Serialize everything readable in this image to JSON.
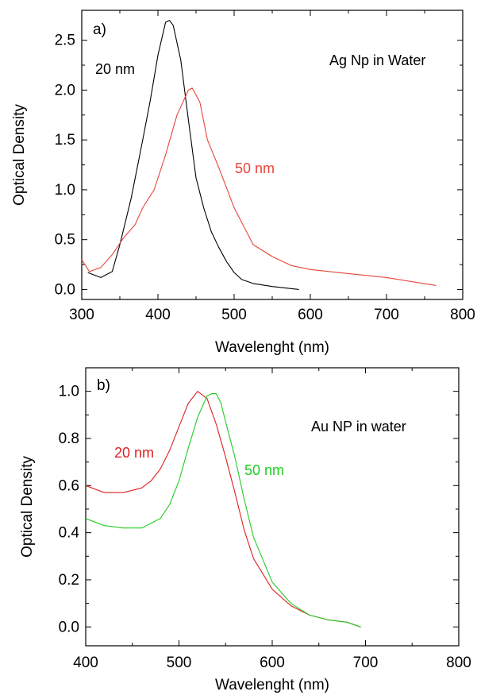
{
  "chart_data": [
    {
      "type": "line",
      "panel_label": "a)",
      "annotation": "Ag Np in Water",
      "xlabel": "Wavelenght (nm)",
      "ylabel": "Optical Density",
      "xlim": [
        300,
        800
      ],
      "ylim": [
        -0.1,
        2.8
      ],
      "xticks": [
        300,
        400,
        500,
        600,
        700,
        800
      ],
      "yticks": [
        0.0,
        0.5,
        1.0,
        1.5,
        2.0,
        2.5
      ],
      "xtick_labels": [
        "300",
        "400",
        "500",
        "600",
        "700",
        "800"
      ],
      "ytick_labels": [
        "0.0",
        "0.5",
        "1.0",
        "1.5",
        "2.0",
        "2.5"
      ],
      "grid": false,
      "series": [
        {
          "name": "20 nm",
          "color": "#000000",
          "x": [
            308,
            325,
            340,
            350,
            365,
            380,
            390,
            400,
            410,
            415,
            420,
            430,
            440,
            450,
            460,
            470,
            480,
            490,
            500,
            510,
            525,
            550,
            585
          ],
          "y": [
            0.17,
            0.12,
            0.18,
            0.45,
            0.92,
            1.5,
            1.9,
            2.35,
            2.68,
            2.7,
            2.65,
            2.3,
            1.7,
            1.12,
            0.82,
            0.58,
            0.42,
            0.28,
            0.17,
            0.1,
            0.06,
            0.03,
            0.0
          ]
        },
        {
          "name": "50 nm",
          "color": "#e8453a",
          "x": [
            300,
            310,
            325,
            340,
            355,
            370,
            380,
            395,
            410,
            425,
            440,
            445,
            455,
            465,
            480,
            500,
            525,
            550,
            575,
            600,
            650,
            700,
            765
          ],
          "y": [
            0.3,
            0.18,
            0.22,
            0.35,
            0.52,
            0.65,
            0.82,
            1.0,
            1.35,
            1.75,
            2.0,
            2.02,
            1.88,
            1.5,
            1.22,
            0.82,
            0.45,
            0.33,
            0.24,
            0.2,
            0.16,
            0.12,
            0.04
          ]
        }
      ]
    },
    {
      "type": "line",
      "panel_label": "b)",
      "annotation": "Au NP in water",
      "xlabel": "Wavelenght (nm)",
      "ylabel": "Optical Density",
      "xlim": [
        400,
        800
      ],
      "ylim": [
        -0.08,
        1.1
      ],
      "xticks": [
        400,
        500,
        600,
        700,
        800
      ],
      "yticks": [
        0.0,
        0.2,
        0.4,
        0.6,
        0.8,
        1.0
      ],
      "xtick_labels": [
        "400",
        "500",
        "600",
        "700",
        "800"
      ],
      "ytick_labels": [
        "0.0",
        "0.2",
        "0.4",
        "0.6",
        "0.8",
        "1.0"
      ],
      "grid": false,
      "series": [
        {
          "name": "20 nm",
          "color": "#e02020",
          "x": [
            400,
            420,
            440,
            460,
            470,
            480,
            490,
            500,
            510,
            520,
            530,
            540,
            550,
            560,
            570,
            580,
            600,
            620,
            640,
            660,
            680,
            695
          ],
          "y": [
            0.6,
            0.57,
            0.57,
            0.59,
            0.62,
            0.67,
            0.75,
            0.85,
            0.95,
            1.0,
            0.97,
            0.86,
            0.72,
            0.57,
            0.41,
            0.29,
            0.16,
            0.09,
            0.05,
            0.03,
            0.02,
            0.0
          ]
        },
        {
          "name": "50 nm",
          "color": "#22cc22",
          "x": [
            400,
            420,
            440,
            460,
            480,
            490,
            500,
            510,
            520,
            530,
            535,
            540,
            545,
            550,
            560,
            570,
            580,
            600,
            620,
            640,
            660,
            680,
            695
          ],
          "y": [
            0.46,
            0.43,
            0.42,
            0.42,
            0.46,
            0.52,
            0.62,
            0.76,
            0.89,
            0.98,
            0.99,
            0.99,
            0.95,
            0.87,
            0.72,
            0.54,
            0.38,
            0.19,
            0.1,
            0.05,
            0.03,
            0.02,
            0.0
          ]
        }
      ]
    }
  ]
}
